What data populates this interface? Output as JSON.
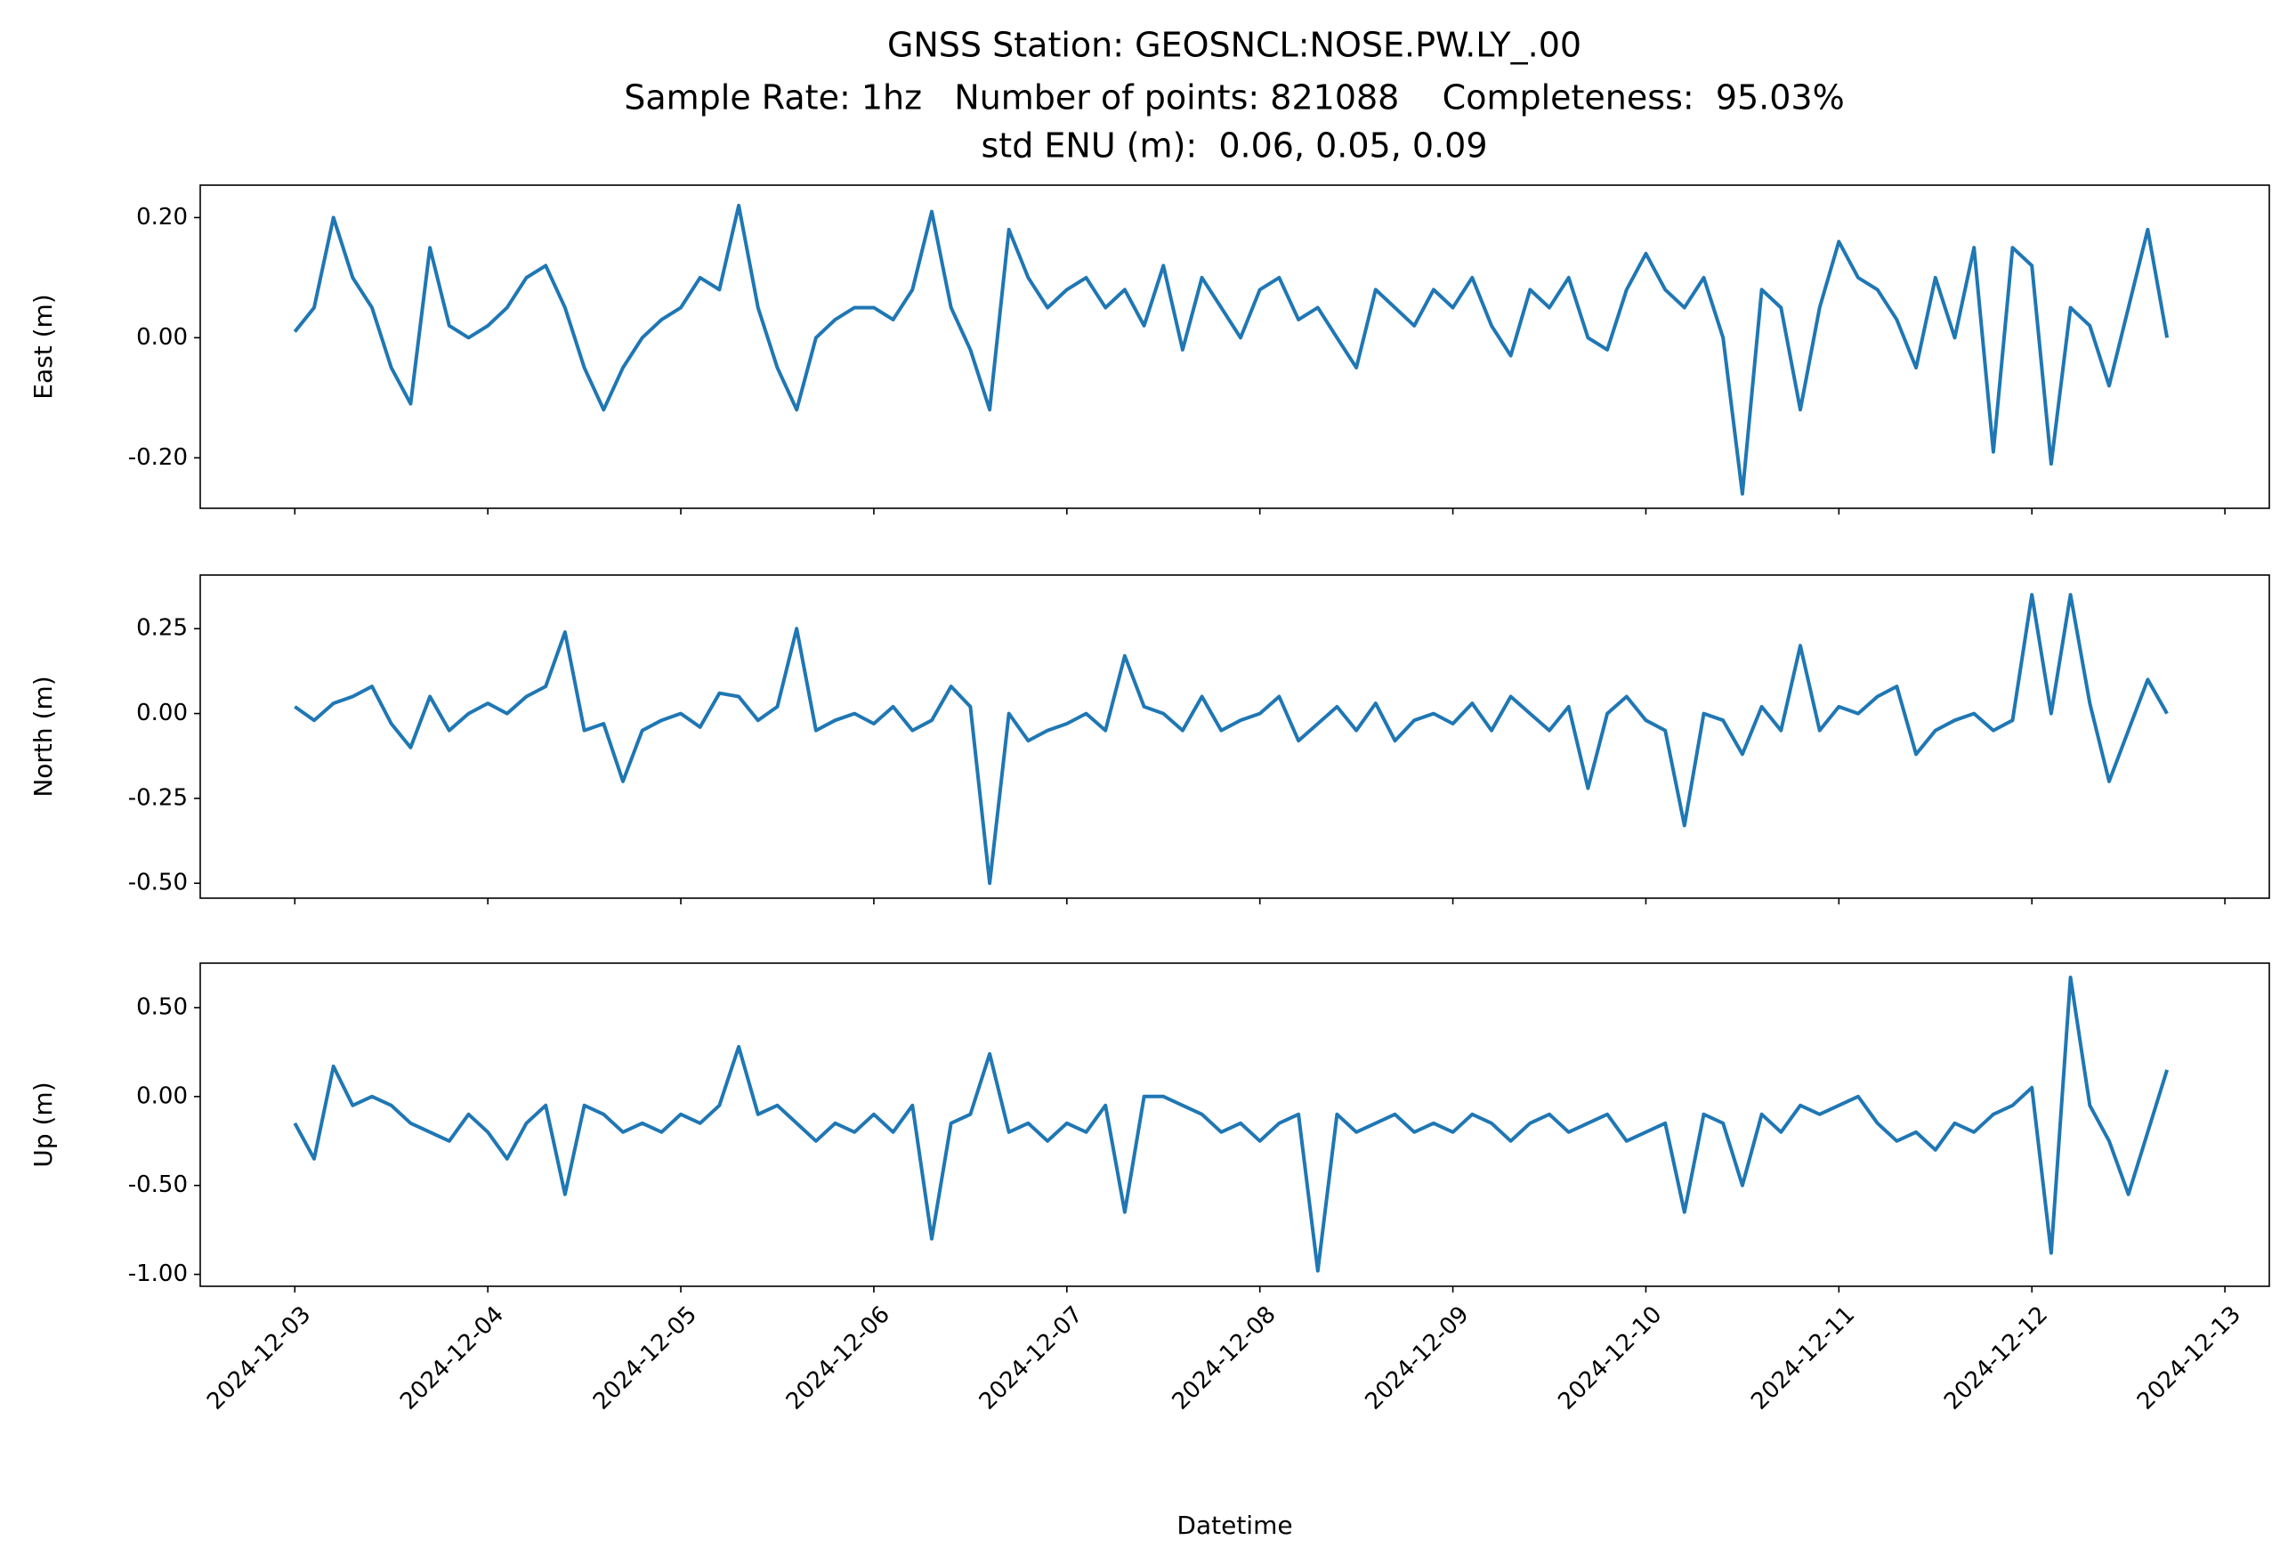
{
  "chart_data": [
    {
      "type": "line",
      "title": "GNSS Station: GEOSNCL:NOSE.PW.LY_.00",
      "subtitle": [
        "Sample Rate: 1hz   Number of points: 821088    Completeness:  95.03%",
        "std ENU (m):  0.06, 0.05, 0.09"
      ],
      "ylabel": "East (m)",
      "x": [
        0,
        0.1,
        0.2,
        0.3,
        0.4,
        0.5,
        0.6,
        0.7,
        0.8,
        0.9,
        1,
        1.1,
        1.2,
        1.3,
        1.4,
        1.5,
        1.6,
        1.7,
        1.8,
        1.9,
        2,
        2.1,
        2.2,
        2.3,
        2.4,
        2.5,
        2.6,
        2.7,
        2.8,
        2.9,
        3,
        3.1,
        3.2,
        3.3,
        3.4,
        3.5,
        3.6,
        3.7,
        3.8,
        3.9,
        4,
        4.1,
        4.2,
        4.3,
        4.4,
        4.5,
        4.6,
        4.7,
        4.8,
        4.9,
        5,
        5.1,
        5.2,
        5.3,
        5.4,
        5.5,
        5.6,
        5.7,
        5.8,
        5.9,
        6,
        6.1,
        6.2,
        6.3,
        6.4,
        6.5,
        6.6,
        6.7,
        6.8,
        6.9,
        7,
        7.1,
        7.2,
        7.3,
        7.4,
        7.5,
        7.6,
        7.7,
        7.8,
        7.9,
        8,
        8.1,
        8.2,
        8.3,
        8.4,
        8.5,
        8.6,
        8.7,
        8.8,
        8.9,
        9,
        9.1,
        9.2,
        9.3,
        9.4,
        9.5,
        9.6,
        9.7
      ],
      "series": [
        {
          "color": "#1f77b4",
          "values": [
            0.01,
            0.05,
            0.2,
            0.1,
            0.05,
            -0.05,
            -0.11,
            0.15,
            0.02,
            0.0,
            0.02,
            0.05,
            0.1,
            0.12,
            0.05,
            -0.05,
            -0.12,
            -0.05,
            0.0,
            0.03,
            0.05,
            0.1,
            0.08,
            0.22,
            0.05,
            -0.05,
            -0.12,
            0.0,
            0.03,
            0.05,
            0.05,
            0.03,
            0.08,
            0.21,
            0.05,
            -0.02,
            -0.12,
            0.18,
            0.1,
            0.05,
            0.08,
            0.1,
            0.05,
            0.08,
            0.02,
            0.12,
            -0.02,
            0.1,
            0.05,
            0.0,
            0.08,
            0.1,
            0.03,
            0.05,
            0.0,
            -0.05,
            0.08,
            0.05,
            0.02,
            0.08,
            0.05,
            0.1,
            0.02,
            -0.03,
            0.08,
            0.05,
            0.1,
            0.0,
            -0.02,
            0.08,
            0.14,
            0.08,
            0.05,
            0.1,
            0.0,
            -0.26,
            0.08,
            0.05,
            -0.12,
            0.05,
            0.16,
            0.1,
            0.08,
            0.03,
            -0.05,
            0.1,
            0.0,
            0.15,
            -0.19,
            0.15,
            0.12,
            -0.21,
            0.05,
            0.02,
            -0.08,
            0.05,
            0.18,
            0.0
          ]
        }
      ],
      "xlim": [
        -0.49,
        10.23
      ],
      "xticks": [
        0,
        1,
        2,
        3,
        4,
        5,
        6,
        7,
        8,
        9,
        10
      ],
      "ylim": [
        -0.284,
        0.254
      ],
      "yticks": [
        {
          "value": -0.2,
          "label": "-0.20"
        },
        {
          "value": 0,
          "label": "0.00"
        },
        {
          "value": 0.2,
          "label": "0.20"
        }
      ]
    },
    {
      "type": "line",
      "ylabel": "North (m)",
      "x": [
        0,
        0.1,
        0.2,
        0.3,
        0.4,
        0.5,
        0.6,
        0.7,
        0.8,
        0.9,
        1,
        1.1,
        1.2,
        1.3,
        1.4,
        1.5,
        1.6,
        1.7,
        1.8,
        1.9,
        2,
        2.1,
        2.2,
        2.3,
        2.4,
        2.5,
        2.6,
        2.7,
        2.8,
        2.9,
        3,
        3.1,
        3.2,
        3.3,
        3.4,
        3.5,
        3.6,
        3.7,
        3.8,
        3.9,
        4,
        4.1,
        4.2,
        4.3,
        4.4,
        4.5,
        4.6,
        4.7,
        4.8,
        4.9,
        5,
        5.1,
        5.2,
        5.3,
        5.4,
        5.5,
        5.6,
        5.7,
        5.8,
        5.9,
        6,
        6.1,
        6.2,
        6.3,
        6.4,
        6.5,
        6.6,
        6.7,
        6.8,
        6.9,
        7,
        7.1,
        7.2,
        7.3,
        7.4,
        7.5,
        7.6,
        7.7,
        7.8,
        7.9,
        8,
        8.1,
        8.2,
        8.3,
        8.4,
        8.5,
        8.6,
        8.7,
        8.8,
        8.9,
        9,
        9.1,
        9.2,
        9.3,
        9.4,
        9.5,
        9.6,
        9.7
      ],
      "series": [
        {
          "color": "#1f77b4",
          "values": [
            0.02,
            -0.02,
            0.03,
            0.05,
            0.08,
            -0.03,
            -0.1,
            0.05,
            -0.05,
            0.0,
            0.03,
            0.0,
            0.05,
            0.08,
            0.24,
            -0.05,
            -0.03,
            -0.2,
            -0.05,
            -0.02,
            0.0,
            -0.04,
            0.06,
            0.05,
            -0.02,
            0.02,
            0.25,
            -0.05,
            -0.02,
            0.0,
            -0.03,
            0.02,
            -0.05,
            -0.02,
            0.08,
            0.02,
            -0.5,
            0.0,
            -0.08,
            -0.05,
            -0.03,
            0.0,
            -0.05,
            0.17,
            0.02,
            0.0,
            -0.05,
            0.05,
            -0.05,
            -0.02,
            0.0,
            0.05,
            -0.08,
            -0.03,
            0.02,
            -0.05,
            0.03,
            -0.08,
            -0.02,
            0.0,
            -0.03,
            0.03,
            -0.05,
            0.05,
            0.0,
            -0.05,
            0.02,
            -0.22,
            0.0,
            0.05,
            -0.02,
            -0.05,
            -0.33,
            0.0,
            -0.02,
            -0.12,
            0.02,
            -0.05,
            0.2,
            -0.05,
            0.02,
            0.0,
            0.05,
            0.08,
            -0.12,
            -0.05,
            -0.02,
            0.0,
            -0.05,
            -0.02,
            0.35,
            0.0,
            0.35,
            0.03,
            -0.2,
            -0.05,
            0.1,
            0.0
          ]
        }
      ],
      "xlim": [
        -0.49,
        10.23
      ],
      "xticks": [
        0,
        1,
        2,
        3,
        4,
        5,
        6,
        7,
        8,
        9,
        10
      ],
      "ylim": [
        -0.544,
        0.408
      ],
      "yticks": [
        {
          "value": -0.5,
          "label": "-0.50"
        },
        -0.25,
        {
          "value": 0,
          "label": "0.00"
        },
        0.25
      ]
    },
    {
      "type": "line",
      "ylabel": "Up (m)",
      "xlabel": "Datetime",
      "x": [
        0,
        0.1,
        0.2,
        0.3,
        0.4,
        0.5,
        0.6,
        0.7,
        0.8,
        0.9,
        1,
        1.1,
        1.2,
        1.3,
        1.4,
        1.5,
        1.6,
        1.7,
        1.8,
        1.9,
        2,
        2.1,
        2.2,
        2.3,
        2.4,
        2.5,
        2.6,
        2.7,
        2.8,
        2.9,
        3,
        3.1,
        3.2,
        3.3,
        3.4,
        3.5,
        3.6,
        3.7,
        3.8,
        3.9,
        4,
        4.1,
        4.2,
        4.3,
        4.4,
        4.5,
        4.6,
        4.7,
        4.8,
        4.9,
        5,
        5.1,
        5.2,
        5.3,
        5.4,
        5.5,
        5.6,
        5.7,
        5.8,
        5.9,
        6,
        6.1,
        6.2,
        6.3,
        6.4,
        6.5,
        6.6,
        6.7,
        6.8,
        6.9,
        7,
        7.1,
        7.2,
        7.3,
        7.4,
        7.5,
        7.6,
        7.7,
        7.8,
        7.9,
        8,
        8.1,
        8.2,
        8.3,
        8.4,
        8.5,
        8.6,
        8.7,
        8.8,
        8.9,
        9,
        9.1,
        9.2,
        9.3,
        9.4,
        9.5,
        9.6,
        9.7
      ],
      "series": [
        {
          "color": "#1f77b4",
          "values": [
            -0.15,
            -0.35,
            0.17,
            -0.05,
            0.0,
            -0.05,
            -0.15,
            -0.2,
            -0.25,
            -0.1,
            -0.2,
            -0.35,
            -0.15,
            -0.05,
            -0.55,
            -0.05,
            -0.1,
            -0.2,
            -0.15,
            -0.2,
            -0.1,
            -0.15,
            -0.05,
            0.28,
            -0.1,
            -0.05,
            -0.15,
            -0.25,
            -0.15,
            -0.2,
            -0.1,
            -0.2,
            -0.05,
            -0.8,
            -0.15,
            -0.1,
            0.24,
            -0.2,
            -0.15,
            -0.25,
            -0.15,
            -0.2,
            -0.05,
            -0.65,
            0.0,
            0.0,
            -0.05,
            -0.1,
            -0.2,
            -0.15,
            -0.25,
            -0.15,
            -0.1,
            -0.98,
            -0.1,
            -0.2,
            -0.15,
            -0.1,
            -0.2,
            -0.15,
            -0.2,
            -0.1,
            -0.15,
            -0.25,
            -0.15,
            -0.1,
            -0.2,
            -0.15,
            -0.1,
            -0.25,
            -0.2,
            -0.15,
            -0.65,
            -0.1,
            -0.15,
            -0.5,
            -0.1,
            -0.2,
            -0.05,
            -0.1,
            -0.05,
            0.0,
            -0.15,
            -0.25,
            -0.2,
            -0.3,
            -0.15,
            -0.2,
            -0.1,
            -0.05,
            0.05,
            -0.88,
            0.67,
            -0.05,
            -0.25,
            -0.55,
            -0.2,
            0.15
          ]
        }
      ],
      "xlim": [
        -0.49,
        10.23
      ],
      "xticks": [
        {
          "value": 0,
          "label": "2024-12-03"
        },
        {
          "value": 1,
          "label": "2024-12-04"
        },
        {
          "value": 2,
          "label": "2024-12-05"
        },
        {
          "value": 3,
          "label": "2024-12-06"
        },
        {
          "value": 4,
          "label": "2024-12-07"
        },
        {
          "value": 5,
          "label": "2024-12-08"
        },
        {
          "value": 6,
          "label": "2024-12-09"
        },
        {
          "value": 7,
          "label": "2024-12-10"
        },
        {
          "value": 8,
          "label": "2024-12-11"
        },
        {
          "value": 9,
          "label": "2024-12-12"
        },
        {
          "value": 10,
          "label": "2024-12-13"
        }
      ],
      "ylim": [
        -1.067,
        0.75
      ],
      "yticks": [
        {
          "value": -1,
          "label": "-1.00"
        },
        {
          "value": -0.5,
          "label": "-0.50"
        },
        {
          "value": 0,
          "label": "0.00"
        },
        {
          "value": 0.5,
          "label": "0.50"
        }
      ]
    }
  ]
}
